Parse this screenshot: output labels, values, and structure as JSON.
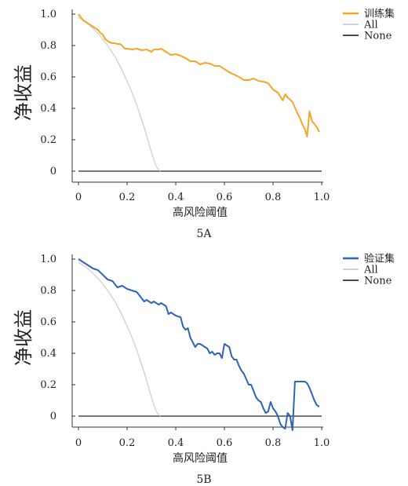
{
  "colors": {
    "train": "#f5a52a",
    "validation": "#2e63b8",
    "all": "#d2d2d2",
    "none": "#4a4a4a",
    "axis": "#333333"
  },
  "chart_data": [
    {
      "type": "line",
      "panel_label": "5A",
      "xlabel": "高风险阈值",
      "ylabel": "净收益",
      "xlim": [
        0,
        1
      ],
      "ylim": [
        0,
        1
      ],
      "xticks": [
        "0",
        "0.2",
        "0.4",
        "0.6",
        "0.8",
        "1.0"
      ],
      "yticks": [
        "0",
        "0.2",
        "0.4",
        "0.6",
        "0.8",
        "1.0"
      ],
      "legend_position": "top-right",
      "series": [
        {
          "name": "训练集",
          "color_key": "train",
          "x": [
            0,
            0.01,
            0.02,
            0.03,
            0.04,
            0.05,
            0.06,
            0.07,
            0.08,
            0.09,
            0.1,
            0.11,
            0.12,
            0.13,
            0.14,
            0.15,
            0.16,
            0.17,
            0.18,
            0.19,
            0.2,
            0.22,
            0.24,
            0.26,
            0.28,
            0.3,
            0.31,
            0.33,
            0.34,
            0.36,
            0.38,
            0.4,
            0.42,
            0.44,
            0.46,
            0.48,
            0.5,
            0.52,
            0.54,
            0.56,
            0.58,
            0.6,
            0.62,
            0.64,
            0.66,
            0.68,
            0.7,
            0.72,
            0.74,
            0.76,
            0.78,
            0.8,
            0.82,
            0.84,
            0.85,
            0.86,
            0.88,
            0.9,
            0.91,
            0.92,
            0.93,
            0.94,
            0.95,
            0.96,
            0.97,
            0.98,
            0.99
          ],
          "y": [
            1.0,
            0.98,
            0.96,
            0.95,
            0.94,
            0.93,
            0.92,
            0.91,
            0.9,
            0.88,
            0.87,
            0.84,
            0.83,
            0.82,
            0.815,
            0.815,
            0.81,
            0.81,
            0.8,
            0.78,
            0.78,
            0.775,
            0.78,
            0.77,
            0.775,
            0.76,
            0.775,
            0.775,
            0.78,
            0.76,
            0.74,
            0.745,
            0.735,
            0.72,
            0.7,
            0.7,
            0.68,
            0.69,
            0.685,
            0.67,
            0.67,
            0.65,
            0.63,
            0.615,
            0.6,
            0.58,
            0.58,
            0.59,
            0.575,
            0.57,
            0.56,
            0.52,
            0.5,
            0.45,
            0.49,
            0.47,
            0.44,
            0.37,
            0.34,
            0.3,
            0.27,
            0.22,
            0.38,
            0.32,
            0.3,
            0.28,
            0.25
          ]
        },
        {
          "name": "All",
          "color_key": "all",
          "x": [
            0,
            0.03,
            0.06,
            0.09,
            0.12,
            0.15,
            0.18,
            0.21,
            0.24,
            0.27,
            0.3,
            0.32,
            0.335
          ],
          "y": [
            0.98,
            0.95,
            0.91,
            0.86,
            0.8,
            0.73,
            0.64,
            0.54,
            0.42,
            0.28,
            0.12,
            0.03,
            0
          ]
        },
        {
          "name": "None",
          "color_key": "none",
          "x": [
            0,
            1
          ],
          "y": [
            0,
            0
          ]
        }
      ]
    },
    {
      "type": "line",
      "panel_label": "5B",
      "xlabel": "高风险阈值",
      "ylabel": "净收益",
      "xlim": [
        0,
        1
      ],
      "ylim": [
        -0.1,
        1
      ],
      "xticks": [
        "0",
        "0.2",
        "0.4",
        "0.6",
        "0.8",
        "1.0"
      ],
      "yticks": [
        "0",
        "0.2",
        "0.4",
        "0.6",
        "0.8",
        "1.0"
      ],
      "legend_position": "top-right",
      "series": [
        {
          "name": "验证集",
          "color_key": "validation",
          "x": [
            0,
            0.02,
            0.04,
            0.06,
            0.08,
            0.1,
            0.12,
            0.14,
            0.16,
            0.18,
            0.2,
            0.22,
            0.24,
            0.25,
            0.27,
            0.28,
            0.3,
            0.31,
            0.33,
            0.34,
            0.36,
            0.37,
            0.38,
            0.4,
            0.42,
            0.43,
            0.44,
            0.45,
            0.46,
            0.47,
            0.48,
            0.49,
            0.5,
            0.52,
            0.53,
            0.54,
            0.55,
            0.56,
            0.57,
            0.58,
            0.59,
            0.6,
            0.61,
            0.62,
            0.63,
            0.64,
            0.65,
            0.66,
            0.67,
            0.68,
            0.7,
            0.71,
            0.72,
            0.73,
            0.74,
            0.75,
            0.76,
            0.77,
            0.78,
            0.79,
            0.8,
            0.81,
            0.82,
            0.83,
            0.84,
            0.85,
            0.86,
            0.87,
            0.88,
            0.89,
            0.9,
            0.91,
            0.92,
            0.93,
            0.94,
            0.95,
            0.96,
            0.97,
            0.98,
            0.99
          ],
          "y": [
            1.0,
            0.98,
            0.96,
            0.94,
            0.93,
            0.9,
            0.87,
            0.86,
            0.82,
            0.83,
            0.81,
            0.8,
            0.79,
            0.77,
            0.73,
            0.74,
            0.72,
            0.73,
            0.71,
            0.72,
            0.7,
            0.65,
            0.66,
            0.64,
            0.63,
            0.57,
            0.55,
            0.56,
            0.5,
            0.47,
            0.44,
            0.46,
            0.46,
            0.44,
            0.43,
            0.4,
            0.41,
            0.39,
            0.4,
            0.4,
            0.37,
            0.46,
            0.45,
            0.44,
            0.38,
            0.36,
            0.36,
            0.32,
            0.29,
            0.27,
            0.2,
            0.2,
            0.16,
            0.12,
            0.1,
            0.09,
            0.05,
            0.02,
            0.03,
            0.09,
            0.05,
            0.03,
            0.0,
            -0.05,
            -0.07,
            -0.08,
            0.02,
            0.0,
            -0.09,
            0.22,
            0.22,
            0.22,
            0.22,
            0.22,
            0.21,
            0.18,
            0.14,
            0.1,
            0.07,
            0.06
          ]
        },
        {
          "name": "All",
          "color_key": "all",
          "x": [
            0,
            0.03,
            0.06,
            0.09,
            0.12,
            0.15,
            0.18,
            0.21,
            0.24,
            0.27,
            0.3,
            0.32,
            0.335
          ],
          "y": [
            0.98,
            0.95,
            0.91,
            0.86,
            0.8,
            0.73,
            0.64,
            0.54,
            0.42,
            0.28,
            0.12,
            0.03,
            0
          ]
        },
        {
          "name": "None",
          "color_key": "none",
          "x": [
            0,
            1
          ],
          "y": [
            0,
            0
          ]
        }
      ]
    }
  ]
}
